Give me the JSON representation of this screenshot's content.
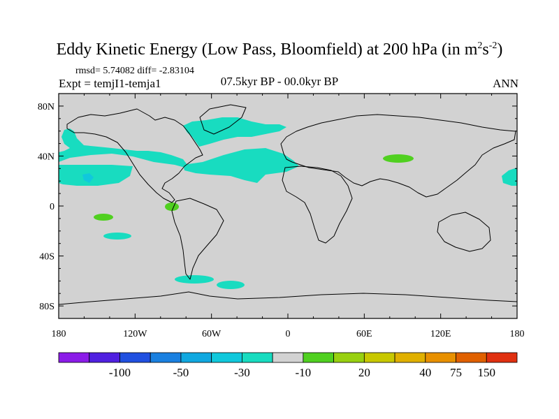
{
  "title": {
    "prefix": "Eddy Kinetic Energy (Low Pass, Bloomfield) at 200 hPa (in m",
    "sup1": "2",
    "mid": "s",
    "sup2": "-2",
    "suffix": ")"
  },
  "stats": "rmsd= 5.74082 diff= -2.83104",
  "expt": "Expt = temjI1-temja1",
  "period": "07.5kyr BP - 00.0kyr BP",
  "season": "ANN",
  "lat_labels": [
    "80N",
    "40N",
    "0",
    "40S",
    "80S"
  ],
  "lat_values": [
    80,
    40,
    0,
    -40,
    -80
  ],
  "lon_labels": [
    "180",
    "120W",
    "60W",
    "0",
    "60E",
    "120E",
    "180"
  ],
  "lon_values": [
    -180,
    -120,
    -60,
    0,
    60,
    120,
    180
  ],
  "colorbar": {
    "colors": [
      "#8b1ce8",
      "#5020e0",
      "#2050e0",
      "#1a80e0",
      "#10a8e0",
      "#10c8dc",
      "#18dcc0",
      "#d2d2d2",
      "#50d020",
      "#98d010",
      "#c8c800",
      "#e0b000",
      "#e89000",
      "#e06000",
      "#e03010"
    ],
    "labels": [
      "-100",
      "-50",
      "-30",
      "-10",
      "20",
      "40",
      "75",
      "150"
    ]
  },
  "colors": {
    "land_ocean": "#d2d2d2",
    "positive_light": "#50d020",
    "negative_light": "#18dcc0",
    "negative_medium": "#10c8dc"
  }
}
